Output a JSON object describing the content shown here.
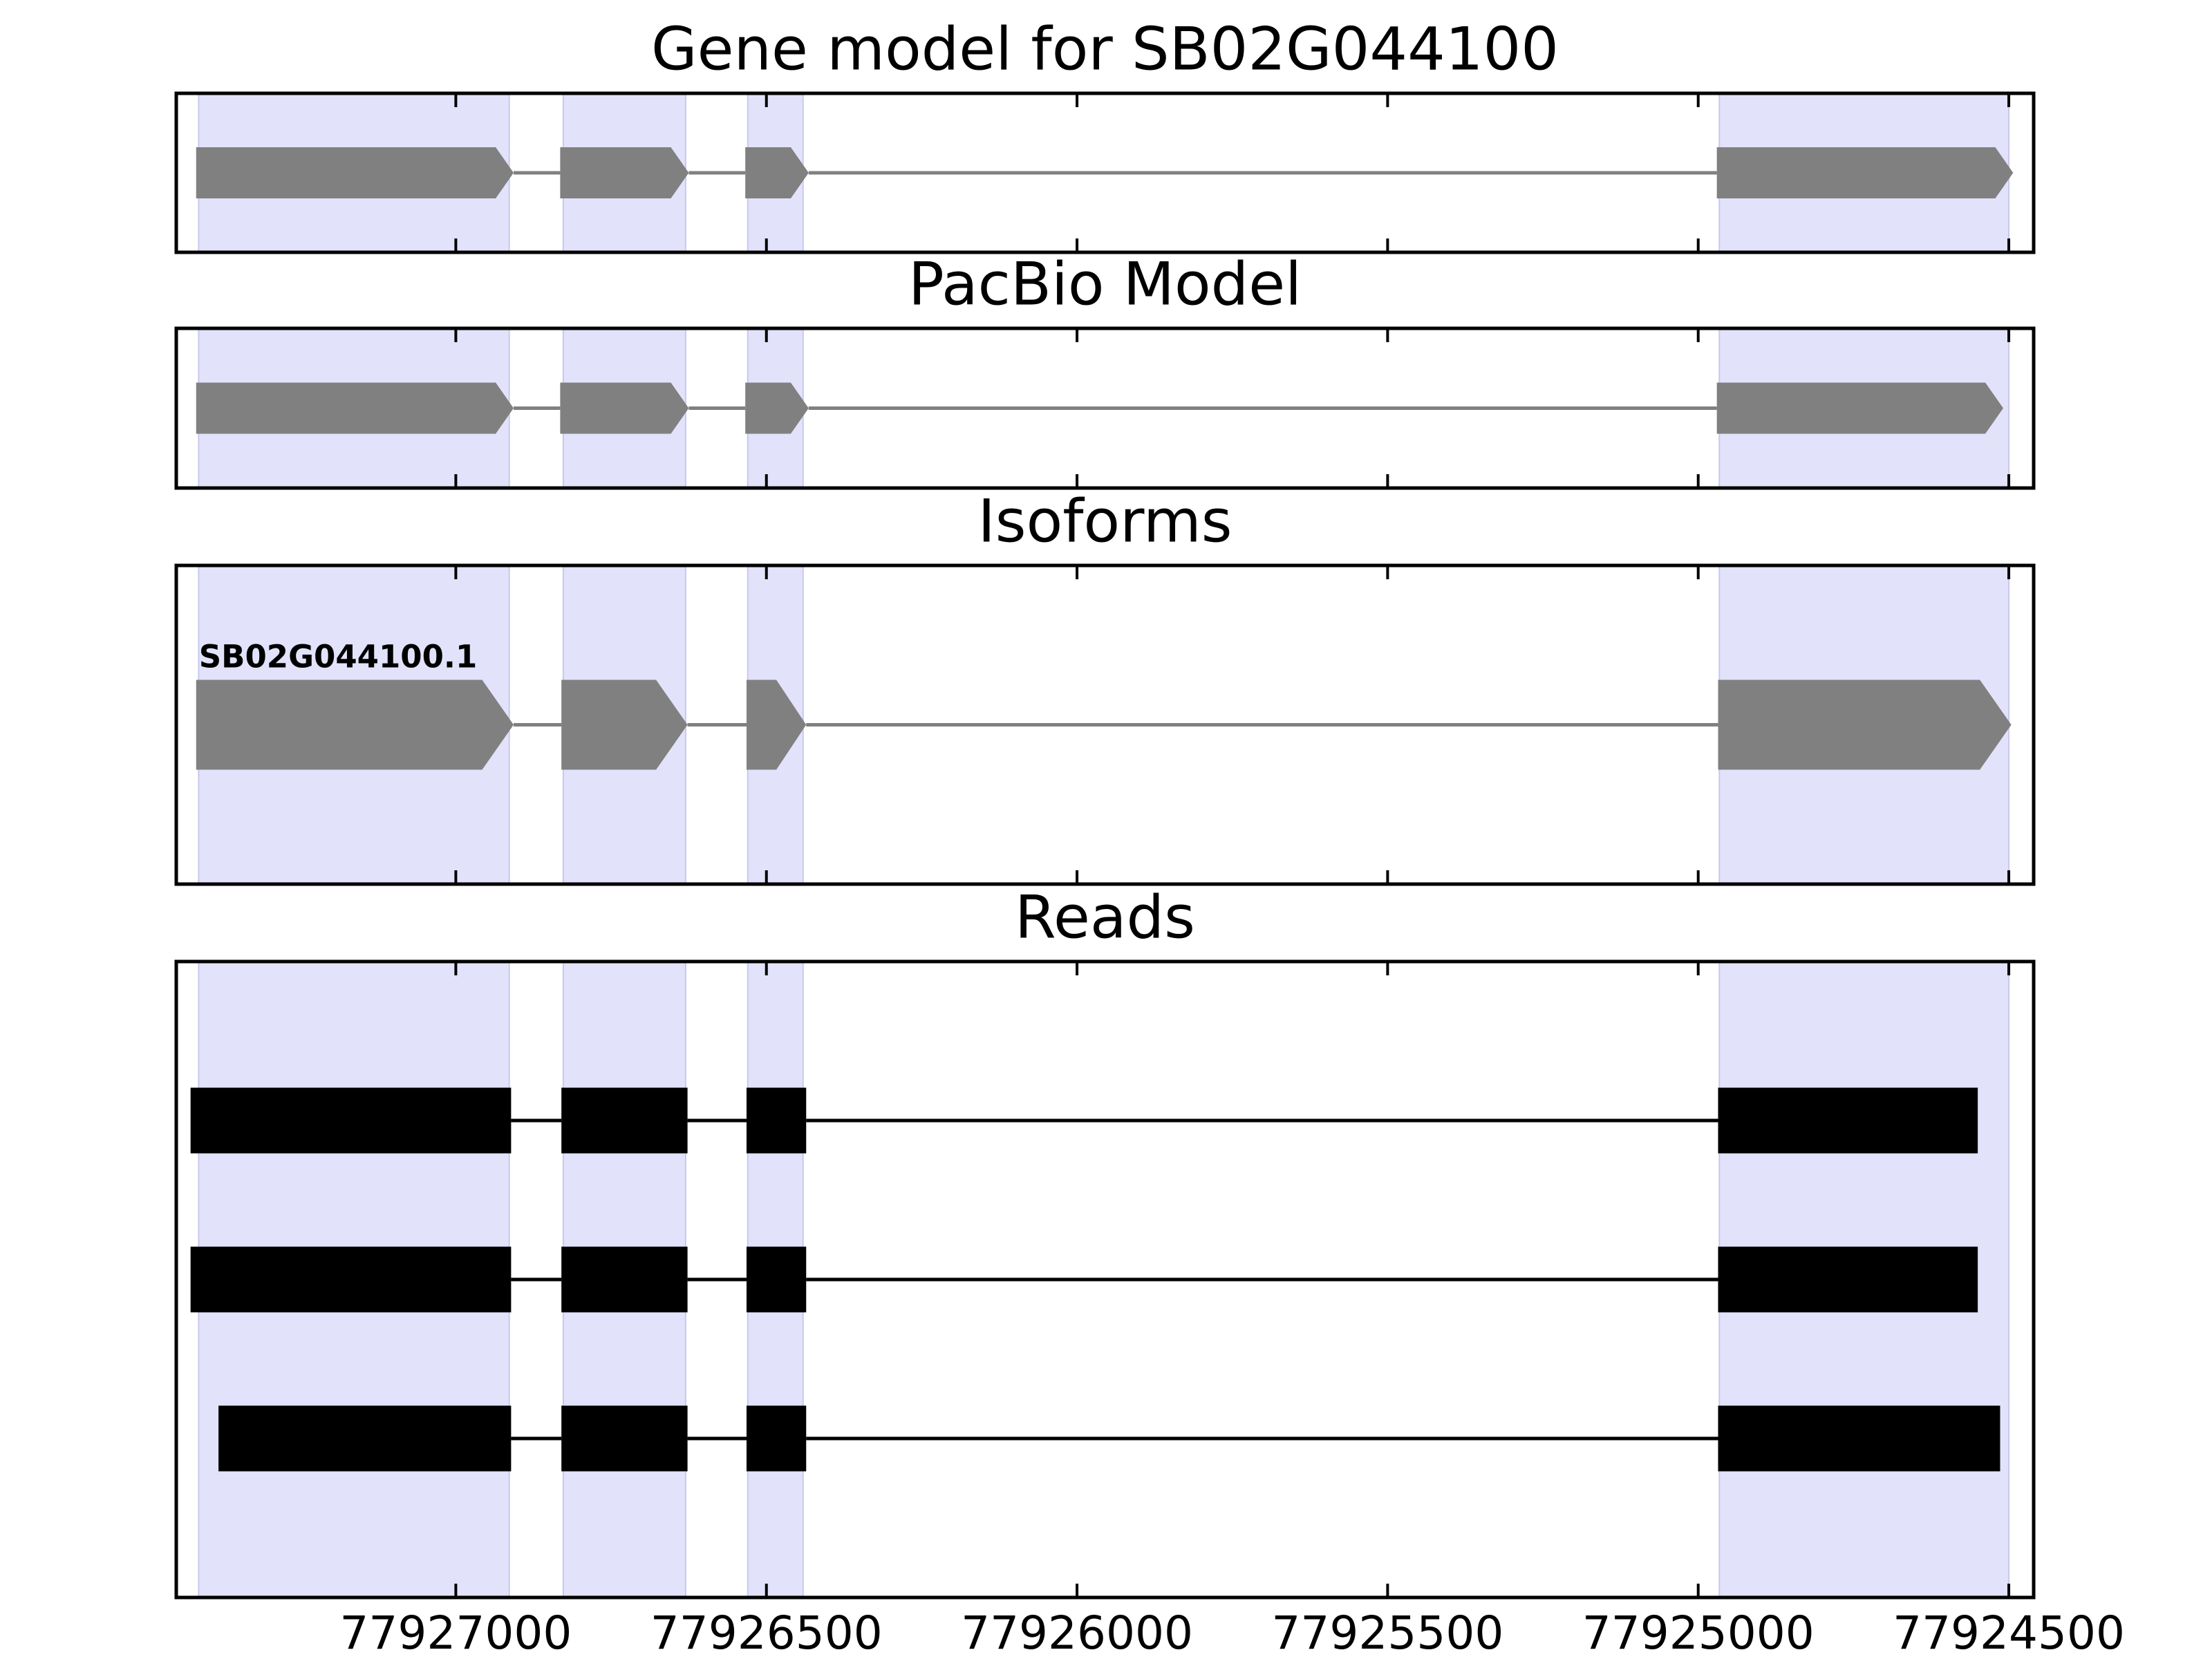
{
  "chart_data": [
    {
      "type": "gene",
      "title": "Gene model for SB02G044100",
      "color": "#808080",
      "highlight_color": "#e2e2fb",
      "xlim": [
        77927450,
        77924460
      ],
      "xticks": [
        77927000,
        77926500,
        77926000,
        77925500,
        77925000,
        77924500
      ],
      "highlights": [
        [
          77927414,
          77926914
        ],
        [
          77926827,
          77926630
        ],
        [
          77926530,
          77926441
        ],
        [
          77924966,
          77924500
        ]
      ],
      "transcripts": [
        {
          "exons": [
            [
              77927418,
              77926907
            ],
            [
              77926832,
              77926625
            ],
            [
              77926534,
              77926432
            ],
            [
              77924970,
              77924493
            ]
          ]
        }
      ]
    },
    {
      "type": "gene",
      "title": "PacBio Model",
      "color": "#808080",
      "highlight_color": "#e2e2fb",
      "xlim": [
        77927450,
        77924460
      ],
      "xticks": [
        77927000,
        77926500,
        77926000,
        77925500,
        77925000,
        77924500
      ],
      "highlights": [
        [
          77927414,
          77926914
        ],
        [
          77926827,
          77926630
        ],
        [
          77926530,
          77926441
        ],
        [
          77924966,
          77924500
        ]
      ],
      "transcripts": [
        {
          "exons": [
            [
              77927418,
              77926907
            ],
            [
              77926832,
              77926625
            ],
            [
              77926534,
              77926432
            ],
            [
              77924970,
              77924509
            ]
          ]
        }
      ]
    },
    {
      "type": "gene",
      "title": "Isoforms",
      "color": "#808080",
      "highlight_color": "#e2e2fb",
      "xlim": [
        77927450,
        77924460
      ],
      "xticks": [
        77927000,
        77926500,
        77926000,
        77925500,
        77925000,
        77924500
      ],
      "highlights": [
        [
          77927414,
          77926914
        ],
        [
          77926827,
          77926630
        ],
        [
          77926530,
          77926441
        ],
        [
          77924966,
          77924500
        ]
      ],
      "transcripts": [
        {
          "name": "SB02G044100.1",
          "exons": [
            [
              77927418,
              77926907
            ],
            [
              77926830,
              77926627
            ],
            [
              77926532,
              77926436
            ],
            [
              77924968,
              77924496
            ]
          ]
        }
      ]
    },
    {
      "type": "reads",
      "title": "Reads",
      "color": "#000000",
      "highlight_color": "#e2e2fb",
      "xlim": [
        77927450,
        77924460
      ],
      "xticks": [
        77927000,
        77926500,
        77926000,
        77925500,
        77925000,
        77924500
      ],
      "tick_labels": true,
      "highlights": [
        [
          77927414,
          77926914
        ],
        [
          77926827,
          77926630
        ],
        [
          77926530,
          77926441
        ],
        [
          77924966,
          77924500
        ]
      ],
      "transcripts": [
        {
          "exons": [
            [
              77927427,
              77926911
            ],
            [
              77926830,
              77926627
            ],
            [
              77926532,
              77926436
            ],
            [
              77924968,
              77924550
            ]
          ]
        },
        {
          "exons": [
            [
              77927427,
              77926911
            ],
            [
              77926830,
              77926627
            ],
            [
              77926532,
              77926436
            ],
            [
              77924968,
              77924550
            ]
          ]
        },
        {
          "exons": [
            [
              77927382,
              77926911
            ],
            [
              77926830,
              77926627
            ],
            [
              77926532,
              77926436
            ],
            [
              77924968,
              77924514
            ]
          ]
        }
      ]
    }
  ]
}
